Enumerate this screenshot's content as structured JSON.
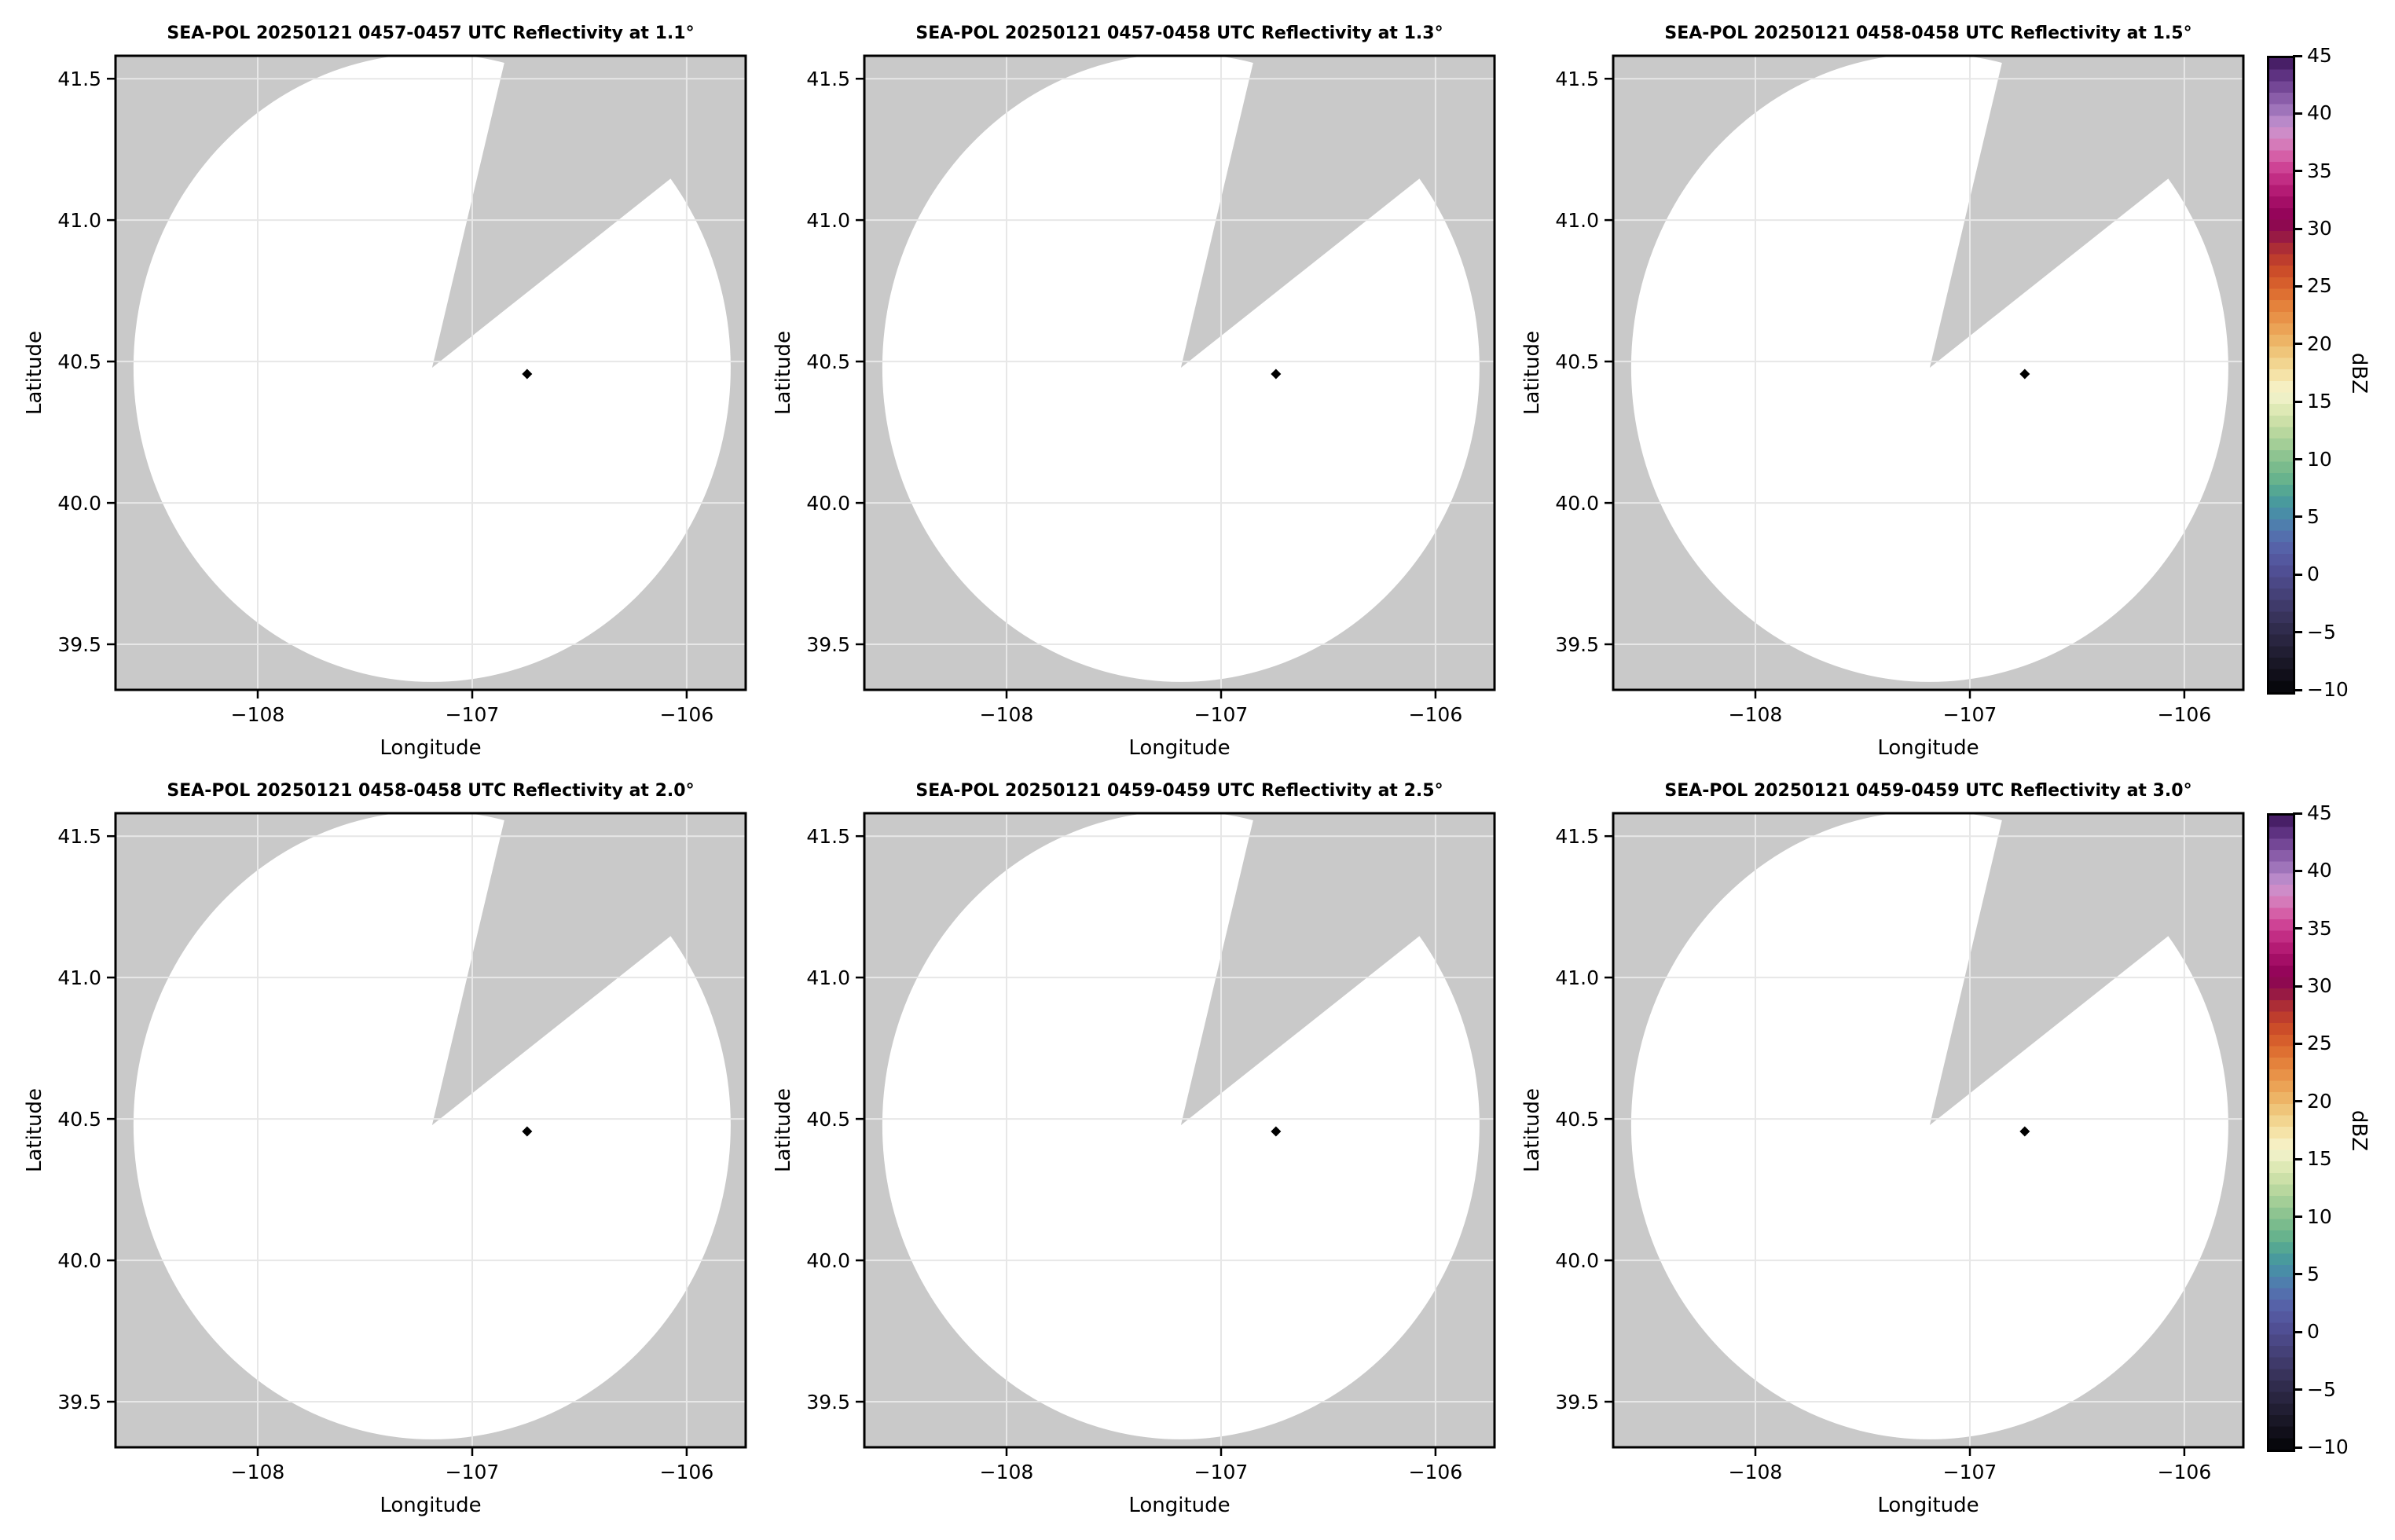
{
  "figure": {
    "background": "#ffffff",
    "nodata_color": "#c9c9c9",
    "data_fill_color": "#ffffff",
    "grid_color": "#e7e7e7",
    "frame_color": "#000000",
    "marker_color": "#000000"
  },
  "chart_data": {
    "type": "heatmap",
    "subtype": "radar_ppi_reflectivity_grid",
    "rows": 2,
    "cols": 3,
    "panels": [
      {
        "title": "SEA-POL 20250121 0457-0457 UTC Reflectivity at 1.1°",
        "radar": "SEA-POL",
        "date": "20250121",
        "time_utc": "0457-0457",
        "elevation": "1.1°"
      },
      {
        "title": "SEA-POL 20250121 0457-0458 UTC Reflectivity at 1.3°",
        "radar": "SEA-POL",
        "date": "20250121",
        "time_utc": "0457-0458",
        "elevation": "1.3°"
      },
      {
        "title": "SEA-POL 20250121 0458-0458 UTC Reflectivity at 1.5°",
        "radar": "SEA-POL",
        "date": "20250121",
        "time_utc": "0458-0458",
        "elevation": "1.5°"
      },
      {
        "title": "SEA-POL 20250121 0458-0458 UTC Reflectivity at 2.0°",
        "radar": "SEA-POL",
        "date": "20250121",
        "time_utc": "0458-0458",
        "elevation": "2.0°"
      },
      {
        "title": "SEA-POL 20250121 0459-0459 UTC Reflectivity at 2.5°",
        "radar": "SEA-POL",
        "date": "20250121",
        "time_utc": "0459-0459",
        "elevation": "2.5°"
      },
      {
        "title": "SEA-POL 20250121 0459-0459 UTC Reflectivity at 3.0°",
        "radar": "SEA-POL",
        "date": "20250121",
        "time_utc": "0459-0459",
        "elevation": "3.0°"
      }
    ],
    "xlabel": "Longitude",
    "ylabel": "Latitude",
    "x_range": [
      -108.663,
      -105.725
    ],
    "y_range": [
      39.339,
      41.581
    ],
    "x_ticks": [
      {
        "value": -108,
        "label": "−108"
      },
      {
        "value": -107,
        "label": "−107"
      },
      {
        "value": -106,
        "label": "−106"
      }
    ],
    "y_ticks": [
      {
        "value": 41.5,
        "label": "41.5"
      },
      {
        "value": 41.0,
        "label": "41.0"
      },
      {
        "value": 40.5,
        "label": "40.5"
      },
      {
        "value": 40.0,
        "label": "40.0"
      },
      {
        "value": 39.5,
        "label": "39.5"
      }
    ],
    "radar_geometry": {
      "center_lon": -107.187,
      "center_lat": 40.478,
      "coverage_radius_deg_lon": 1.392,
      "coverage_radius_deg_lat": 1.111,
      "blocked_sector_azimuth_deg": [
        14,
        53
      ],
      "marker_lon": -106.744,
      "marker_lat": 40.456
    },
    "colorbar": {
      "label": "dBZ",
      "min": -10,
      "max": 45,
      "ticks": [
        {
          "value": 45,
          "label": "45"
        },
        {
          "value": 40,
          "label": "40"
        },
        {
          "value": 35,
          "label": "35"
        },
        {
          "value": 30,
          "label": "30"
        },
        {
          "value": 25,
          "label": "25"
        },
        {
          "value": 20,
          "label": "20"
        },
        {
          "value": 15,
          "label": "15"
        },
        {
          "value": 10,
          "label": "10"
        },
        {
          "value": 5,
          "label": "5"
        },
        {
          "value": 0,
          "label": "0"
        },
        {
          "value": -5,
          "label": "−5"
        },
        {
          "value": -10,
          "label": "−10"
        }
      ],
      "stops": [
        {
          "v": -10,
          "c": "#040407"
        },
        {
          "v": -8,
          "c": "#151320"
        },
        {
          "v": -6,
          "c": "#252139"
        },
        {
          "v": -4,
          "c": "#343054"
        },
        {
          "v": -2,
          "c": "#423d71"
        },
        {
          "v": 0,
          "c": "#4e4b8d"
        },
        {
          "v": 1,
          "c": "#52539a"
        },
        {
          "v": 2,
          "c": "#555ca4"
        },
        {
          "v": 3,
          "c": "#5668ab"
        },
        {
          "v": 4,
          "c": "#5276ae"
        },
        {
          "v": 5,
          "c": "#4b85ab"
        },
        {
          "v": 6,
          "c": "#4794a2"
        },
        {
          "v": 7,
          "c": "#4aa098"
        },
        {
          "v": 8,
          "c": "#60ae8e"
        },
        {
          "v": 9,
          "c": "#70b78c"
        },
        {
          "v": 10,
          "c": "#84bf8e"
        },
        {
          "v": 11,
          "c": "#98c993"
        },
        {
          "v": 12,
          "c": "#aed29a"
        },
        {
          "v": 13,
          "c": "#c2dba2"
        },
        {
          "v": 14,
          "c": "#d5e5ae"
        },
        {
          "v": 15,
          "c": "#e6edbc"
        },
        {
          "v": 16,
          "c": "#f5f3cf"
        },
        {
          "v": 17,
          "c": "#f6eab4"
        },
        {
          "v": 18,
          "c": "#f3dc9b"
        },
        {
          "v": 19,
          "c": "#f0cd84"
        },
        {
          "v": 20,
          "c": "#eebc6f"
        },
        {
          "v": 21,
          "c": "#ecab5d"
        },
        {
          "v": 22,
          "c": "#ea9a4e"
        },
        {
          "v": 23,
          "c": "#e68a41"
        },
        {
          "v": 24,
          "c": "#e17936"
        },
        {
          "v": 25,
          "c": "#da662e"
        },
        {
          "v": 26,
          "c": "#d25529"
        },
        {
          "v": 27,
          "c": "#c64529"
        },
        {
          "v": 28,
          "c": "#b63531"
        },
        {
          "v": 29,
          "c": "#a2243b"
        },
        {
          "v": 30,
          "c": "#8d0f4d"
        },
        {
          "v": 31,
          "c": "#8e0253"
        },
        {
          "v": 32,
          "c": "#9c0860"
        },
        {
          "v": 33,
          "c": "#ac146c"
        },
        {
          "v": 34,
          "c": "#bb227b"
        },
        {
          "v": 35,
          "c": "#c9378c"
        },
        {
          "v": 36,
          "c": "#d24f9d"
        },
        {
          "v": 37,
          "c": "#d76fb0"
        },
        {
          "v": 38,
          "c": "#d384c1"
        },
        {
          "v": 39,
          "c": "#c893cf"
        },
        {
          "v": 40,
          "c": "#a97fc2"
        },
        {
          "v": 41,
          "c": "#9468b2"
        },
        {
          "v": 42,
          "c": "#7f52a0"
        },
        {
          "v": 43,
          "c": "#693c8c"
        },
        {
          "v": 44,
          "c": "#532876"
        },
        {
          "v": 45,
          "c": "#3c1558"
        }
      ]
    }
  }
}
